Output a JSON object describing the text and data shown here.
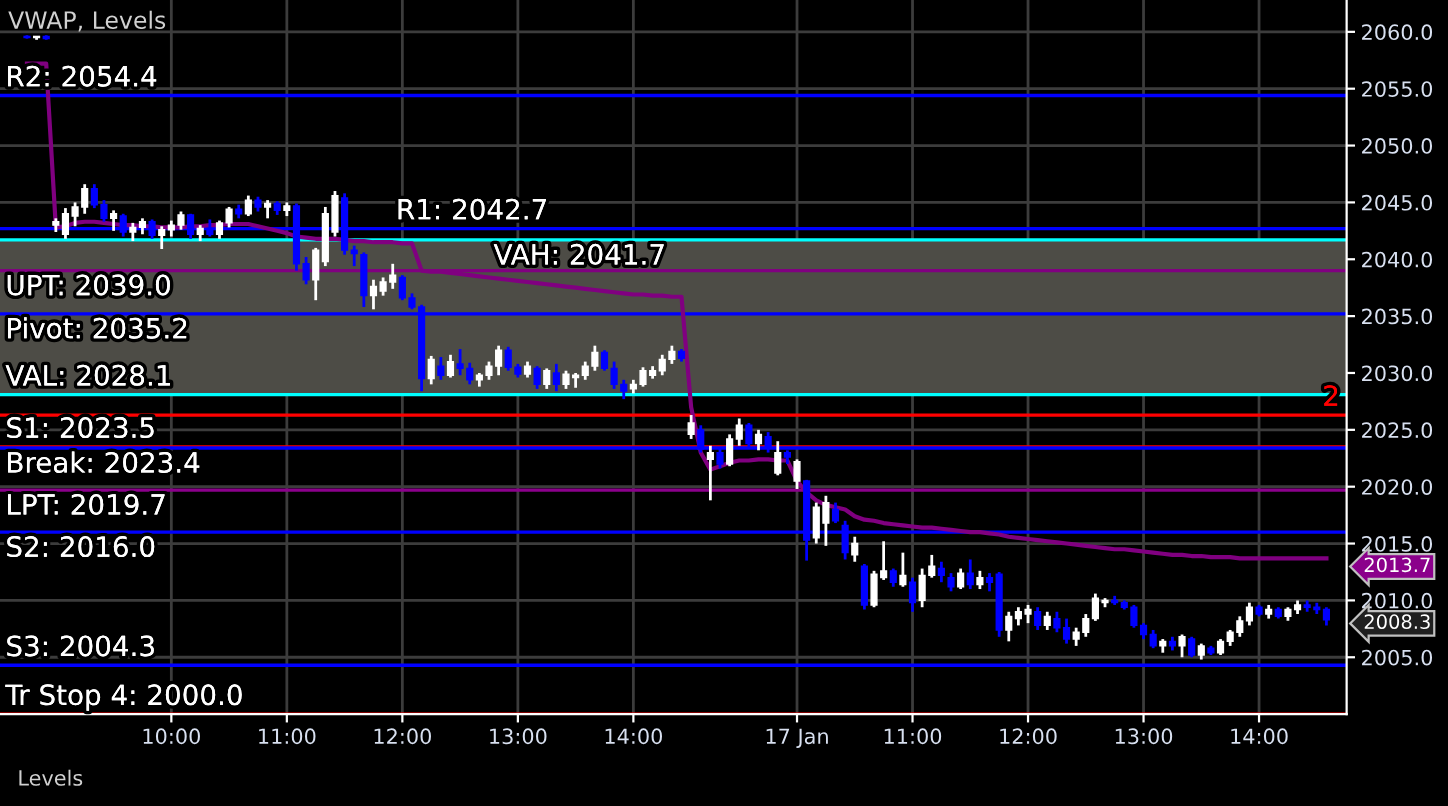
{
  "chart_data": {
    "type": "candlestick",
    "title": "VWAP, Levels",
    "categories": [
      null,
      null,
      null,
      null,
      null,
      null,
      null,
      null,
      null,
      null,
      null,
      null,
      null,
      null,
      null,
      "10:00",
      null,
      null,
      null,
      null,
      null,
      null,
      null,
      null,
      null,
      null,
      null,
      "11:00",
      null,
      null,
      null,
      null,
      null,
      null,
      null,
      null,
      null,
      null,
      null,
      "12:00",
      null,
      null,
      null,
      null,
      null,
      null,
      null,
      null,
      null,
      null,
      null,
      "13:00",
      null,
      null,
      null,
      null,
      null,
      null,
      null,
      null,
      null,
      null,
      null,
      "14:00",
      null,
      null,
      null,
      null,
      null,
      null,
      null,
      null,
      null,
      null,
      null,
      null,
      null,
      null,
      null,
      null,
      "17 Jan",
      null,
      null,
      null,
      null,
      null,
      null,
      null,
      null,
      null,
      null,
      null,
      "11:00",
      null,
      null,
      null,
      null,
      null,
      null,
      null,
      null,
      null,
      null,
      null,
      "12:00",
      null,
      null,
      null,
      null,
      null,
      null,
      null,
      null,
      null,
      null,
      null,
      "13:00",
      null,
      null,
      null,
      null,
      null,
      null,
      null,
      null,
      null,
      null,
      null,
      "14:00",
      null,
      null,
      null,
      null,
      null,
      null,
      null
    ],
    "ohlc": [
      [
        2059.6,
        2059.7,
        2059.4,
        2059.5
      ],
      [
        2059.5,
        2059.6,
        2059.3,
        2059.6
      ],
      [
        2059.6,
        2059.7,
        2059.3,
        2059.4
      ],
      [
        2043.0,
        2043.6,
        2042.4,
        2043.3
      ],
      [
        2042.2,
        2044.5,
        2041.8,
        2044.0
      ],
      [
        2043.8,
        2045.0,
        2042.9,
        2044.6
      ],
      [
        2044.6,
        2046.6,
        2044.0,
        2046.2
      ],
      [
        2046.2,
        2046.6,
        2044.5,
        2044.8
      ],
      [
        2044.8,
        2045.2,
        2043.3,
        2043.6
      ],
      [
        2043.6,
        2044.3,
        2042.5,
        2044.0
      ],
      [
        2043.8,
        2044.0,
        2042.0,
        2042.4
      ],
      [
        2042.4,
        2043.2,
        2041.6,
        2042.8
      ],
      [
        2042.8,
        2043.6,
        2042.2,
        2043.3
      ],
      [
        2043.3,
        2043.5,
        2041.8,
        2042.1
      ],
      [
        2042.1,
        2042.9,
        2040.9,
        2042.6
      ],
      [
        2042.6,
        2043.4,
        2042.0,
        2043.0
      ],
      [
        2043.0,
        2044.2,
        2042.6,
        2043.9
      ],
      [
        2043.9,
        2044.0,
        2041.8,
        2042.2
      ],
      [
        2042.2,
        2043.0,
        2041.6,
        2042.7
      ],
      [
        2042.7,
        2043.5,
        2042.0,
        2042.2
      ],
      [
        2042.2,
        2043.4,
        2041.8,
        2043.2
      ],
      [
        2043.2,
        2044.6,
        2042.8,
        2044.4
      ],
      [
        2044.4,
        2044.8,
        2043.6,
        2044.0
      ],
      [
        2044.0,
        2045.6,
        2043.8,
        2045.2
      ],
      [
        2045.2,
        2045.5,
        2044.2,
        2044.6
      ],
      [
        2044.6,
        2045.2,
        2043.6,
        2044.9
      ],
      [
        2044.9,
        2045.1,
        2043.9,
        2044.3
      ],
      [
        2044.3,
        2045.0,
        2043.8,
        2044.7
      ],
      [
        2044.7,
        2044.9,
        2039.0,
        2039.6
      ],
      [
        2039.6,
        2040.2,
        2037.8,
        2038.2
      ],
      [
        2038.2,
        2041.0,
        2036.4,
        2040.8
      ],
      [
        2039.8,
        2044.6,
        2039.4,
        2044.0
      ],
      [
        2042.4,
        2046.0,
        2042.0,
        2045.6
      ],
      [
        2045.4,
        2045.8,
        2040.4,
        2040.8
      ],
      [
        2040.8,
        2041.2,
        2039.4,
        2040.5
      ],
      [
        2040.4,
        2040.6,
        2035.8,
        2036.8
      ],
      [
        2036.8,
        2038.2,
        2035.6,
        2037.6
      ],
      [
        2037.2,
        2038.4,
        2036.8,
        2038.0
      ],
      [
        2038.0,
        2039.6,
        2037.4,
        2038.6
      ],
      [
        2038.4,
        2038.6,
        2036.4,
        2036.6
      ],
      [
        2036.6,
        2037.0,
        2035.6,
        2035.8
      ],
      [
        2035.8,
        2036.0,
        2028.4,
        2029.5
      ],
      [
        2029.5,
        2031.5,
        2029.0,
        2031.2
      ],
      [
        2030.6,
        2031.4,
        2029.4,
        2029.8
      ],
      [
        2029.8,
        2031.6,
        2029.6,
        2031.0
      ],
      [
        2030.8,
        2032.1,
        2029.8,
        2030.4
      ],
      [
        2030.4,
        2030.9,
        2029.0,
        2029.4
      ],
      [
        2029.4,
        2030.0,
        2028.8,
        2029.8
      ],
      [
        2029.8,
        2031.0,
        2029.4,
        2030.6
      ],
      [
        2030.6,
        2032.4,
        2029.8,
        2032.0
      ],
      [
        2032.0,
        2032.3,
        2030.2,
        2030.5
      ],
      [
        2030.5,
        2030.8,
        2029.6,
        2029.9
      ],
      [
        2029.9,
        2031.0,
        2029.6,
        2030.6
      ],
      [
        2030.4,
        2030.6,
        2028.6,
        2029.0
      ],
      [
        2029.0,
        2030.4,
        2028.6,
        2030.2
      ],
      [
        2030.0,
        2030.8,
        2028.4,
        2029.0
      ],
      [
        2029.0,
        2030.2,
        2028.6,
        2029.9
      ],
      [
        2029.6,
        2030.0,
        2028.7,
        2029.8
      ],
      [
        2029.8,
        2031.0,
        2029.4,
        2030.6
      ],
      [
        2030.6,
        2032.4,
        2030.2,
        2031.8
      ],
      [
        2031.8,
        2032.0,
        2030.2,
        2030.4
      ],
      [
        2030.4,
        2031.0,
        2028.6,
        2029.0
      ],
      [
        2029.0,
        2029.4,
        2027.7,
        2028.4
      ],
      [
        2028.6,
        2029.4,
        2028.2,
        2029.0
      ],
      [
        2029.0,
        2030.5,
        2028.8,
        2030.2
      ],
      [
        2029.8,
        2030.6,
        2029.5,
        2030.2
      ],
      [
        2030.2,
        2031.6,
        2029.8,
        2031.2
      ],
      [
        2031.2,
        2032.4,
        2030.8,
        2031.9
      ],
      [
        2031.9,
        2032.1,
        2031.0,
        2031.3
      ],
      [
        2024.6,
        2026.3,
        2024.2,
        2025.6
      ],
      [
        2025.0,
        2025.4,
        2023.0,
        2023.3
      ],
      [
        2022.4,
        2023.6,
        2018.8,
        2023.0
      ],
      [
        2023.0,
        2023.4,
        2021.6,
        2022.0
      ],
      [
        2022.0,
        2024.6,
        2021.8,
        2024.2
      ],
      [
        2024.2,
        2026.0,
        2023.6,
        2025.4
      ],
      [
        2025.4,
        2025.6,
        2023.4,
        2023.8
      ],
      [
        2023.8,
        2025.0,
        2023.2,
        2024.6
      ],
      [
        2024.4,
        2024.8,
        2023.0,
        2023.4
      ],
      [
        2021.2,
        2024.0,
        2021.0,
        2023.0
      ],
      [
        2023.0,
        2023.2,
        2022.0,
        2022.6
      ],
      [
        2020.5,
        2022.4,
        2019.8,
        2022.2
      ],
      [
        2020.5,
        2020.6,
        2013.5,
        2015.3
      ],
      [
        2015.5,
        2018.6,
        2015.0,
        2018.2
      ],
      [
        2016.8,
        2019.2,
        2014.8,
        2018.6
      ],
      [
        2018.0,
        2018.6,
        2016.8,
        2017.0
      ],
      [
        2016.6,
        2017.0,
        2013.6,
        2014.2
      ],
      [
        2014.0,
        2015.6,
        2013.4,
        2015.0
      ],
      [
        2013.0,
        2013.2,
        2009.2,
        2009.6
      ],
      [
        2009.6,
        2012.6,
        2009.4,
        2012.3
      ],
      [
        2012.0,
        2015.2,
        2011.8,
        2012.6
      ],
      [
        2012.6,
        2012.8,
        2011.2,
        2011.6
      ],
      [
        2011.4,
        2014.2,
        2011.2,
        2012.2
      ],
      [
        2011.6,
        2012.0,
        2009.0,
        2009.8
      ],
      [
        2010.0,
        2012.8,
        2009.4,
        2012.2
      ],
      [
        2012.2,
        2014.0,
        2012.0,
        2013.0
      ],
      [
        2012.8,
        2013.4,
        2011.6,
        2012.2
      ],
      [
        2012.0,
        2012.4,
        2010.8,
        2011.2
      ],
      [
        2011.2,
        2012.8,
        2011.0,
        2012.4
      ],
      [
        2012.4,
        2013.6,
        2011.0,
        2011.4
      ],
      [
        2011.4,
        2012.6,
        2011.0,
        2012.0
      ],
      [
        2012.0,
        2012.4,
        2010.8,
        2011.6
      ],
      [
        2012.3,
        2012.5,
        2006.8,
        2007.4
      ],
      [
        2007.4,
        2009.0,
        2006.4,
        2008.6
      ],
      [
        2008.4,
        2009.4,
        2007.8,
        2009.0
      ],
      [
        2008.8,
        2009.6,
        2008.0,
        2009.2
      ],
      [
        2009.0,
        2009.4,
        2007.4,
        2007.8
      ],
      [
        2007.8,
        2009.0,
        2007.4,
        2008.6
      ],
      [
        2008.4,
        2009.0,
        2007.2,
        2007.6
      ],
      [
        2007.6,
        2008.4,
        2006.2,
        2006.6
      ],
      [
        2006.6,
        2007.6,
        2006.0,
        2007.2
      ],
      [
        2007.2,
        2008.8,
        2006.8,
        2008.4
      ],
      [
        2008.4,
        2010.6,
        2008.2,
        2010.2
      ],
      [
        2009.8,
        2010.2,
        2009.4,
        2010.0
      ],
      [
        2010.0,
        2010.4,
        2009.6,
        2009.8
      ],
      [
        2009.8,
        2010.0,
        2009.2,
        2009.4
      ],
      [
        2009.4,
        2009.6,
        2007.6,
        2007.8
      ],
      [
        2007.8,
        2008.0,
        2006.6,
        2007.0
      ],
      [
        2007.0,
        2007.4,
        2005.8,
        2006.0
      ],
      [
        2006.0,
        2006.6,
        2005.4,
        2006.4
      ],
      [
        2006.4,
        2006.8,
        2005.6,
        2006.0
      ],
      [
        2006.0,
        2007.0,
        2005.0,
        2006.8
      ],
      [
        2006.6,
        2006.8,
        2005.0,
        2005.2
      ],
      [
        2005.2,
        2006.2,
        2004.8,
        2006.0
      ],
      [
        2005.8,
        2006.0,
        2005.2,
        2005.4
      ],
      [
        2005.4,
        2006.6,
        2005.2,
        2006.4
      ],
      [
        2006.4,
        2007.4,
        2006.0,
        2007.2
      ],
      [
        2007.2,
        2008.6,
        2006.8,
        2008.2
      ],
      [
        2008.2,
        2009.8,
        2007.8,
        2009.4
      ],
      [
        2009.4,
        2009.6,
        2008.6,
        2008.8
      ],
      [
        2008.8,
        2009.6,
        2008.4,
        2009.2
      ],
      [
        2009.2,
        2009.4,
        2008.4,
        2008.6
      ],
      [
        2008.6,
        2009.4,
        2008.2,
        2009.2
      ],
      [
        2009.2,
        2010.0,
        2008.8,
        2009.6
      ],
      [
        2009.6,
        2010.0,
        2009.0,
        2009.4
      ],
      [
        2009.4,
        2009.8,
        2008.8,
        2009.2
      ],
      [
        2009.2,
        2009.4,
        2007.8,
        2008.3
      ]
    ],
    "colors": [
      "#0000ff",
      "#ffffff",
      "#0000ff",
      "#ffffff",
      "#ffffff",
      "#ffffff",
      "#ffffff",
      "#0000ff",
      "#0000ff",
      "#ffffff",
      "#0000ff",
      "#ffffff",
      "#ffffff",
      "#0000ff",
      "#ffffff",
      "#ffffff",
      "#ffffff",
      "#0000ff",
      "#ffffff",
      "#0000ff",
      "#ffffff",
      "#ffffff",
      "#0000ff",
      "#ffffff",
      "#0000ff",
      "#ffffff",
      "#0000ff",
      "#ffffff",
      "#0000ff",
      "#0000ff",
      "#ffffff",
      "#ffffff",
      "#ffffff",
      "#0000ff",
      "#0000ff",
      "#0000ff",
      "#ffffff",
      "#ffffff",
      "#ffffff",
      "#0000ff",
      "#0000ff",
      "#0000ff",
      "#ffffff",
      "#0000ff",
      "#ffffff",
      "#0000ff",
      "#0000ff",
      "#ffffff",
      "#ffffff",
      "#ffffff",
      "#0000ff",
      "#0000ff",
      "#ffffff",
      "#0000ff",
      "#ffffff",
      "#0000ff",
      "#ffffff",
      "#ffffff",
      "#ffffff",
      "#ffffff",
      "#0000ff",
      "#0000ff",
      "#0000ff",
      "#ffffff",
      "#ffffff",
      "#ffffff",
      "#ffffff",
      "#ffffff",
      "#0000ff",
      "#ffffff",
      "#0000ff",
      "#ffffff",
      "#0000ff",
      "#ffffff",
      "#ffffff",
      "#0000ff",
      "#ffffff",
      "#0000ff",
      "#ffffff",
      "#0000ff",
      "#ffffff",
      "#0000ff",
      "#ffffff",
      "#ffffff",
      "#0000ff",
      "#0000ff",
      "#ffffff",
      "#0000ff",
      "#ffffff",
      "#ffffff",
      "#0000ff",
      "#ffffff",
      "#0000ff",
      "#ffffff",
      "#ffffff",
      "#0000ff",
      "#0000ff",
      "#ffffff",
      "#0000ff",
      "#ffffff",
      "#0000ff",
      "#0000ff",
      "#ffffff",
      "#ffffff",
      "#ffffff",
      "#0000ff",
      "#ffffff",
      "#0000ff",
      "#0000ff",
      "#ffffff",
      "#ffffff",
      "#ffffff",
      "#ffffff",
      "#0000ff",
      "#0000ff",
      "#0000ff",
      "#0000ff",
      "#0000ff",
      "#ffffff",
      "#0000ff",
      "#ffffff",
      "#0000ff",
      "#ffffff",
      "#0000ff",
      "#ffffff",
      "#ffffff",
      "#ffffff",
      "#ffffff",
      "#0000ff",
      "#ffffff",
      "#0000ff",
      "#ffffff",
      "#ffffff",
      "#0000ff",
      "#0000ff",
      "#0000ff"
    ],
    "series": [
      {
        "type": "line",
        "color": "#800080",
        "values": [
          2057.2,
          2057.2,
          2057.2,
          2042.8,
          2042.9,
          2043.2,
          2043.3,
          2043.3,
          2043.2,
          2043.1,
          2043.0,
          2043.0,
          2042.9,
          2042.9,
          2042.8,
          2042.8,
          2042.8,
          2042.9,
          2042.9,
          2043.0,
          2043.0,
          2043.1,
          2043.1,
          2043.1,
          2042.9,
          2042.7,
          2042.5,
          2042.3,
          2042.0,
          2041.9,
          2041.8,
          2041.8,
          2041.8,
          2041.7,
          2041.6,
          2041.6,
          2041.5,
          2041.5,
          2041.5,
          2041.4,
          2041.4,
          2039.0,
          2038.9,
          2038.9,
          2038.8,
          2038.7,
          2038.6,
          2038.5,
          2038.4,
          2038.3,
          2038.2,
          2038.1,
          2038.0,
          2037.9,
          2037.8,
          2037.7,
          2037.6,
          2037.5,
          2037.4,
          2037.3,
          2037.2,
          2037.1,
          2037.0,
          2036.9,
          2036.9,
          2036.8,
          2036.8,
          2036.7,
          2036.7,
          2027.0,
          2023.0,
          2021.5,
          2021.8,
          2022.1,
          2022.3,
          2022.3,
          2022.4,
          2022.4,
          2022.3,
          2022.3,
          2020.5,
          2019.5,
          2018.8,
          2018.4,
          2018.2,
          2018.0,
          2017.4,
          2017.1,
          2017.0,
          2016.8,
          2016.7,
          2016.6,
          2016.5,
          2016.4,
          2016.4,
          2016.3,
          2016.2,
          2016.1,
          2016.0,
          2016.0,
          2015.9,
          2015.8,
          2015.6,
          2015.5,
          2015.4,
          2015.3,
          2015.2,
          2015.1,
          2015.0,
          2014.9,
          2014.8,
          2014.7,
          2014.6,
          2014.5,
          2014.5,
          2014.4,
          2014.3,
          2014.2,
          2014.1,
          2014.0,
          2014.0,
          2013.9,
          2013.9,
          2013.8,
          2013.8,
          2013.8,
          2013.7,
          2013.7,
          2013.7,
          2013.7,
          2013.7,
          2013.7,
          2013.7,
          2013.7,
          2013.7,
          2013.7
        ]
      }
    ],
    "ylim": [
      2000.0,
      2062.8
    ],
    "yticks": [
      {
        "value": 2005,
        "label": "2005.0"
      },
      {
        "value": 2010,
        "label": "2010.0"
      },
      {
        "value": 2015,
        "label": "2015.0"
      },
      {
        "value": 2020,
        "label": "2020.0"
      },
      {
        "value": 2025,
        "label": "2025.0"
      },
      {
        "value": 2030,
        "label": "2030.0"
      },
      {
        "value": 2035,
        "label": "2035.0"
      },
      {
        "value": 2040,
        "label": "2040.0"
      },
      {
        "value": 2045,
        "label": "2045.0"
      },
      {
        "value": 2050,
        "label": "2050.0"
      },
      {
        "value": 2055,
        "label": "2055.0"
      },
      {
        "value": 2060,
        "label": "2060.0"
      }
    ],
    "bands": [
      {
        "axis": "y",
        "from": 2028.1,
        "to": 2041.7,
        "color": "#4d4c46"
      }
    ],
    "ref_lines": [
      {
        "axis": "y",
        "value": 2054.4,
        "label": "R2: 2054.4",
        "color": "#0000ff"
      },
      {
        "axis": "y",
        "value": 2042.7,
        "label": "R1: 2042.7",
        "color": "#0000ff"
      },
      {
        "axis": "y",
        "value": 2041.7,
        "label": "VAH: 2041.7",
        "color": "#00ffff"
      },
      {
        "axis": "y",
        "value": 2039.0,
        "label": "UPT: 2039.0",
        "color": "#800080"
      },
      {
        "axis": "y",
        "value": 2035.2,
        "label": "Pivot: 2035.2",
        "color": "#0000ff"
      },
      {
        "axis": "y",
        "value": 2028.1,
        "label": "VAL: 2028.1",
        "color": "#00ffff"
      },
      {
        "axis": "y",
        "value": 2026.3,
        "color": "#ff0000"
      },
      {
        "axis": "y",
        "value": 2023.5,
        "label": "S1: 2023.5",
        "color": "#ff0000"
      },
      {
        "axis": "y",
        "value": 2023.4,
        "label": "Break: 2023.4",
        "color": "#0000ff"
      },
      {
        "axis": "y",
        "value": 2019.7,
        "label": "LPT: 2019.7",
        "color": "#8b008b"
      },
      {
        "axis": "y",
        "value": 2016.0,
        "label": "S2: 2016.0",
        "color": "#0000ff"
      },
      {
        "axis": "y",
        "value": 2004.3,
        "label": "S3: 2004.3",
        "color": "#0000ff"
      },
      {
        "axis": "y",
        "value": 2000.0,
        "label": "Tr Stop 4: 2000.0",
        "color": "#ff0000"
      }
    ],
    "annotations": [
      "2013.7",
      "2008.3",
      "2",
      "Levels"
    ],
    "grid": true
  }
}
